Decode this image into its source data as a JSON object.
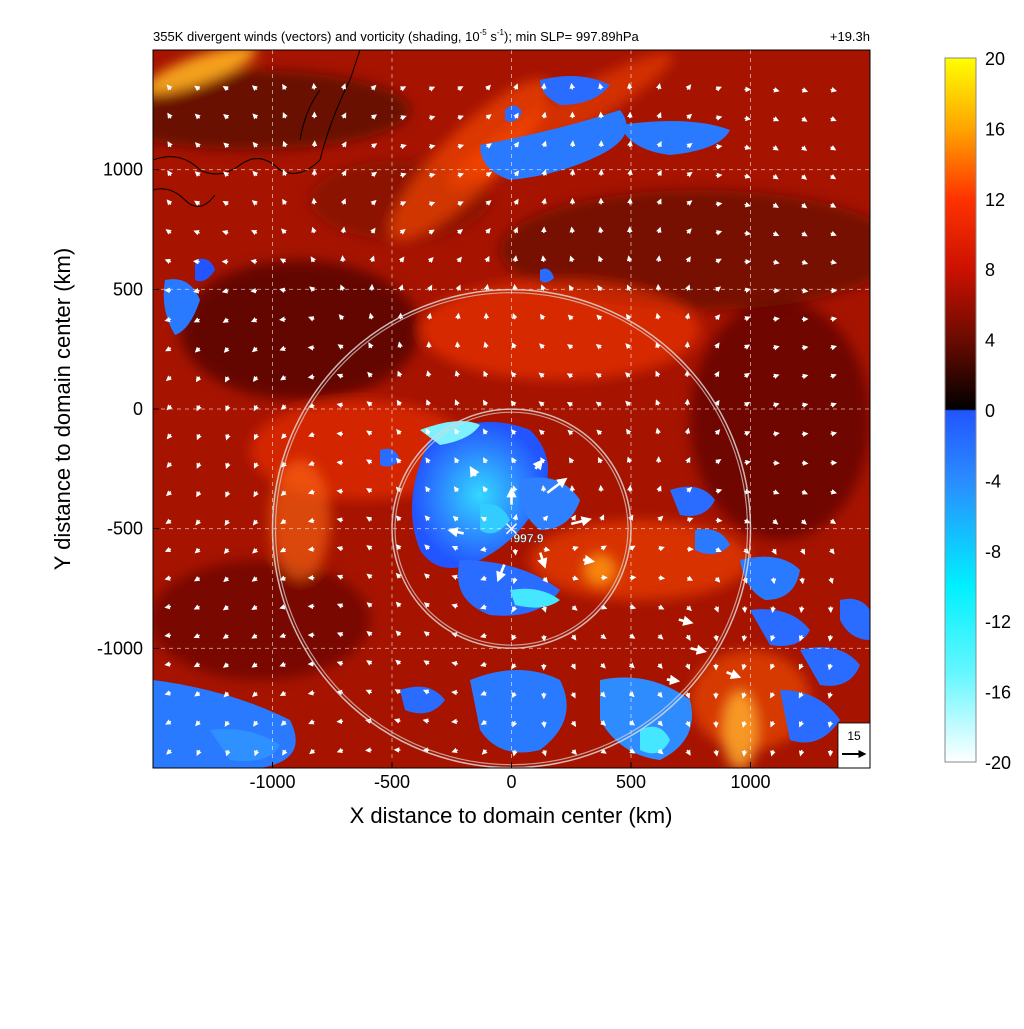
{
  "chart_data": {
    "type": "heatmap",
    "title_main": "355K divergent winds (vectors) and vorticity (shading, 10",
    "title_exp1": "-5",
    "title_mid": " s",
    "title_exp2": "-1",
    "title_end": "); min SLP= 997.89hPa",
    "time_label": "+19.3h",
    "xlabel": "X distance to domain center (km)",
    "ylabel": "Y distance to domain center (km)",
    "xlim": [
      -1500,
      1500
    ],
    "ylim": [
      -1500,
      1500
    ],
    "x_ticks": [
      -1000,
      -500,
      0,
      500,
      1000
    ],
    "y_ticks": [
      1000,
      500,
      0,
      -500,
      -1000
    ],
    "grid": true,
    "colorbar": {
      "min": -20,
      "max": 20,
      "ticks": [
        20,
        16,
        12,
        8,
        4,
        0,
        -4,
        -8,
        -12,
        -16,
        -20
      ],
      "stops": [
        {
          "v": 20,
          "c": "#ffff00"
        },
        {
          "v": 16,
          "c": "#ffa500"
        },
        {
          "v": 12,
          "c": "#ff3300"
        },
        {
          "v": 8,
          "c": "#cc1100"
        },
        {
          "v": 4,
          "c": "#6a0b00"
        },
        {
          "v": 0.05,
          "c": "#000000"
        },
        {
          "v": -0.05,
          "c": "#2255ff"
        },
        {
          "v": -4,
          "c": "#2a8cff"
        },
        {
          "v": -10,
          "c": "#00f0ff"
        },
        {
          "v": -15,
          "c": "#66f7ff"
        },
        {
          "v": -20,
          "c": "#ffffff"
        }
      ]
    },
    "center": {
      "x": 0,
      "y": -500,
      "label": "997.9"
    },
    "range_rings_km": [
      500,
      1000
    ],
    "reference_vector": {
      "label": "15",
      "value": 15
    },
    "vectors": [
      {
        "x": 0,
        "y": -400,
        "u": 0,
        "v": 10
      },
      {
        "x": 150,
        "y": -350,
        "u": 12,
        "v": 9
      },
      {
        "x": 250,
        "y": -480,
        "u": 12,
        "v": 3
      },
      {
        "x": -200,
        "y": -520,
        "u": -9,
        "v": 2
      },
      {
        "x": -30,
        "y": -650,
        "u": -4,
        "v": -10
      },
      {
        "x": 120,
        "y": -600,
        "u": 3,
        "v": -9
      },
      {
        "x": -150,
        "y": -280,
        "u": -3,
        "v": 5
      },
      {
        "x": 100,
        "y": -250,
        "u": 4,
        "v": 5
      },
      {
        "x": 300,
        "y": -630,
        "u": 6,
        "v": -1
      },
      {
        "x": 700,
        "y": -880,
        "u": 8,
        "v": -2
      },
      {
        "x": 750,
        "y": -1000,
        "u": 9,
        "v": -2
      },
      {
        "x": 900,
        "y": -1100,
        "u": 8,
        "v": -3
      },
      {
        "x": 650,
        "y": -1130,
        "u": 7,
        "v": -1
      }
    ]
  }
}
